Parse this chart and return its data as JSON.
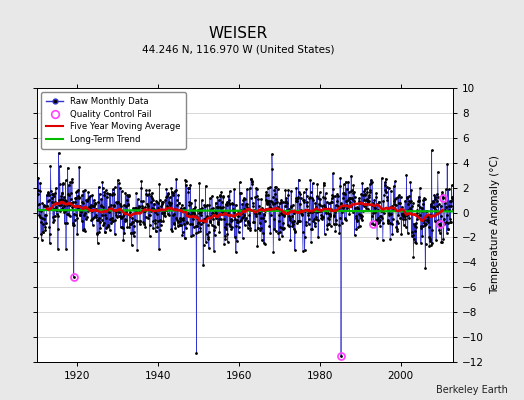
{
  "title": "WEISER",
  "subtitle": "44.246 N, 116.970 W (United States)",
  "ylabel": "Temperature Anomaly (°C)",
  "credit": "Berkeley Earth",
  "ylim": [
    -12,
    10
  ],
  "yticks": [
    -12,
    -10,
    -8,
    -6,
    -4,
    -2,
    0,
    2,
    4,
    6,
    8,
    10
  ],
  "xlim": [
    1910,
    2013
  ],
  "xticks": [
    1920,
    1940,
    1960,
    1980,
    2000
  ],
  "start_year": 1910,
  "end_year": 2012,
  "background_color": "#e8e8e8",
  "plot_bg_color": "#ffffff",
  "grid_color": "#c8c8c8",
  "raw_line_color": "#3333cc",
  "raw_dot_color": "#000000",
  "moving_avg_color": "#dd0000",
  "trend_color": "#00bb00",
  "qc_fail_color": "#ff44ff",
  "seed": 17
}
